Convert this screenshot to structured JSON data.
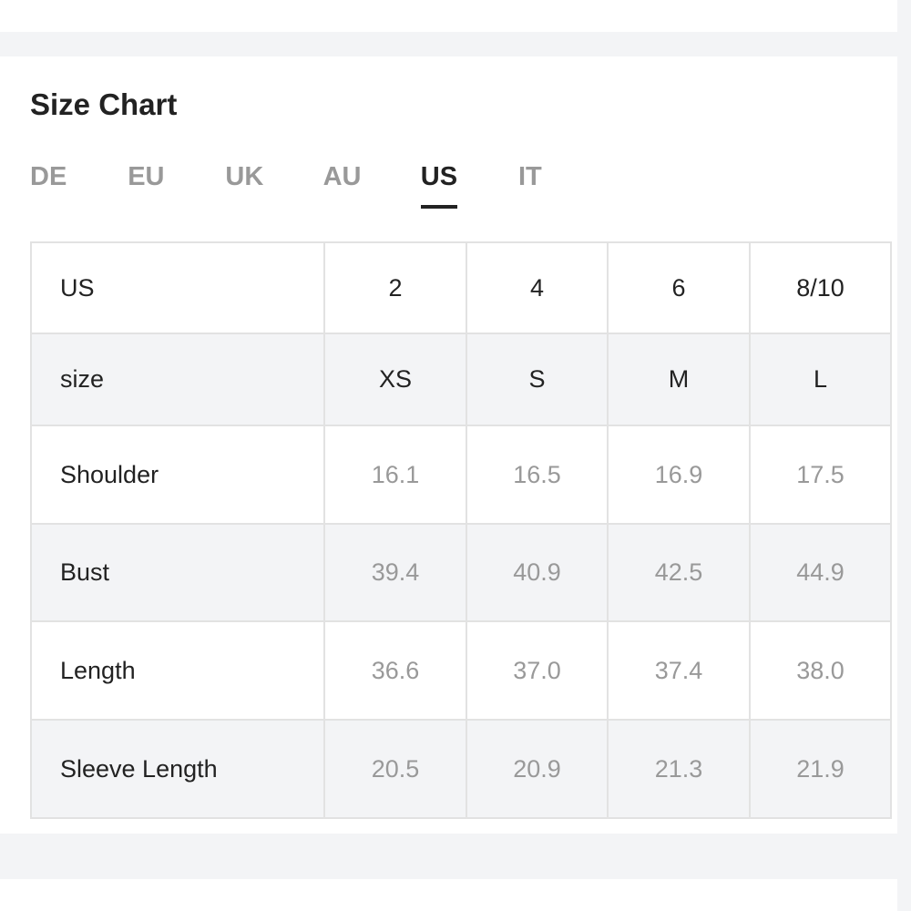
{
  "header": {
    "title": "Size Chart"
  },
  "tabs": {
    "items": [
      "DE",
      "EU",
      "UK",
      "AU",
      "US",
      "IT"
    ],
    "active": 4
  },
  "table": {
    "header_rows": 2,
    "rows": [
      [
        "US",
        "2",
        "4",
        "6",
        "8/10"
      ],
      [
        "size",
        "XS",
        "S",
        "M",
        "L"
      ],
      [
        "Shoulder",
        "16.1",
        "16.5",
        "16.9",
        "17.5"
      ],
      [
        "Bust",
        "39.4",
        "40.9",
        "42.5",
        "44.9"
      ],
      [
        "Length",
        "36.6",
        "37.0",
        "37.4",
        "38.0"
      ],
      [
        "Sleeve Length",
        "20.5",
        "20.9",
        "21.3",
        "21.9"
      ]
    ]
  }
}
